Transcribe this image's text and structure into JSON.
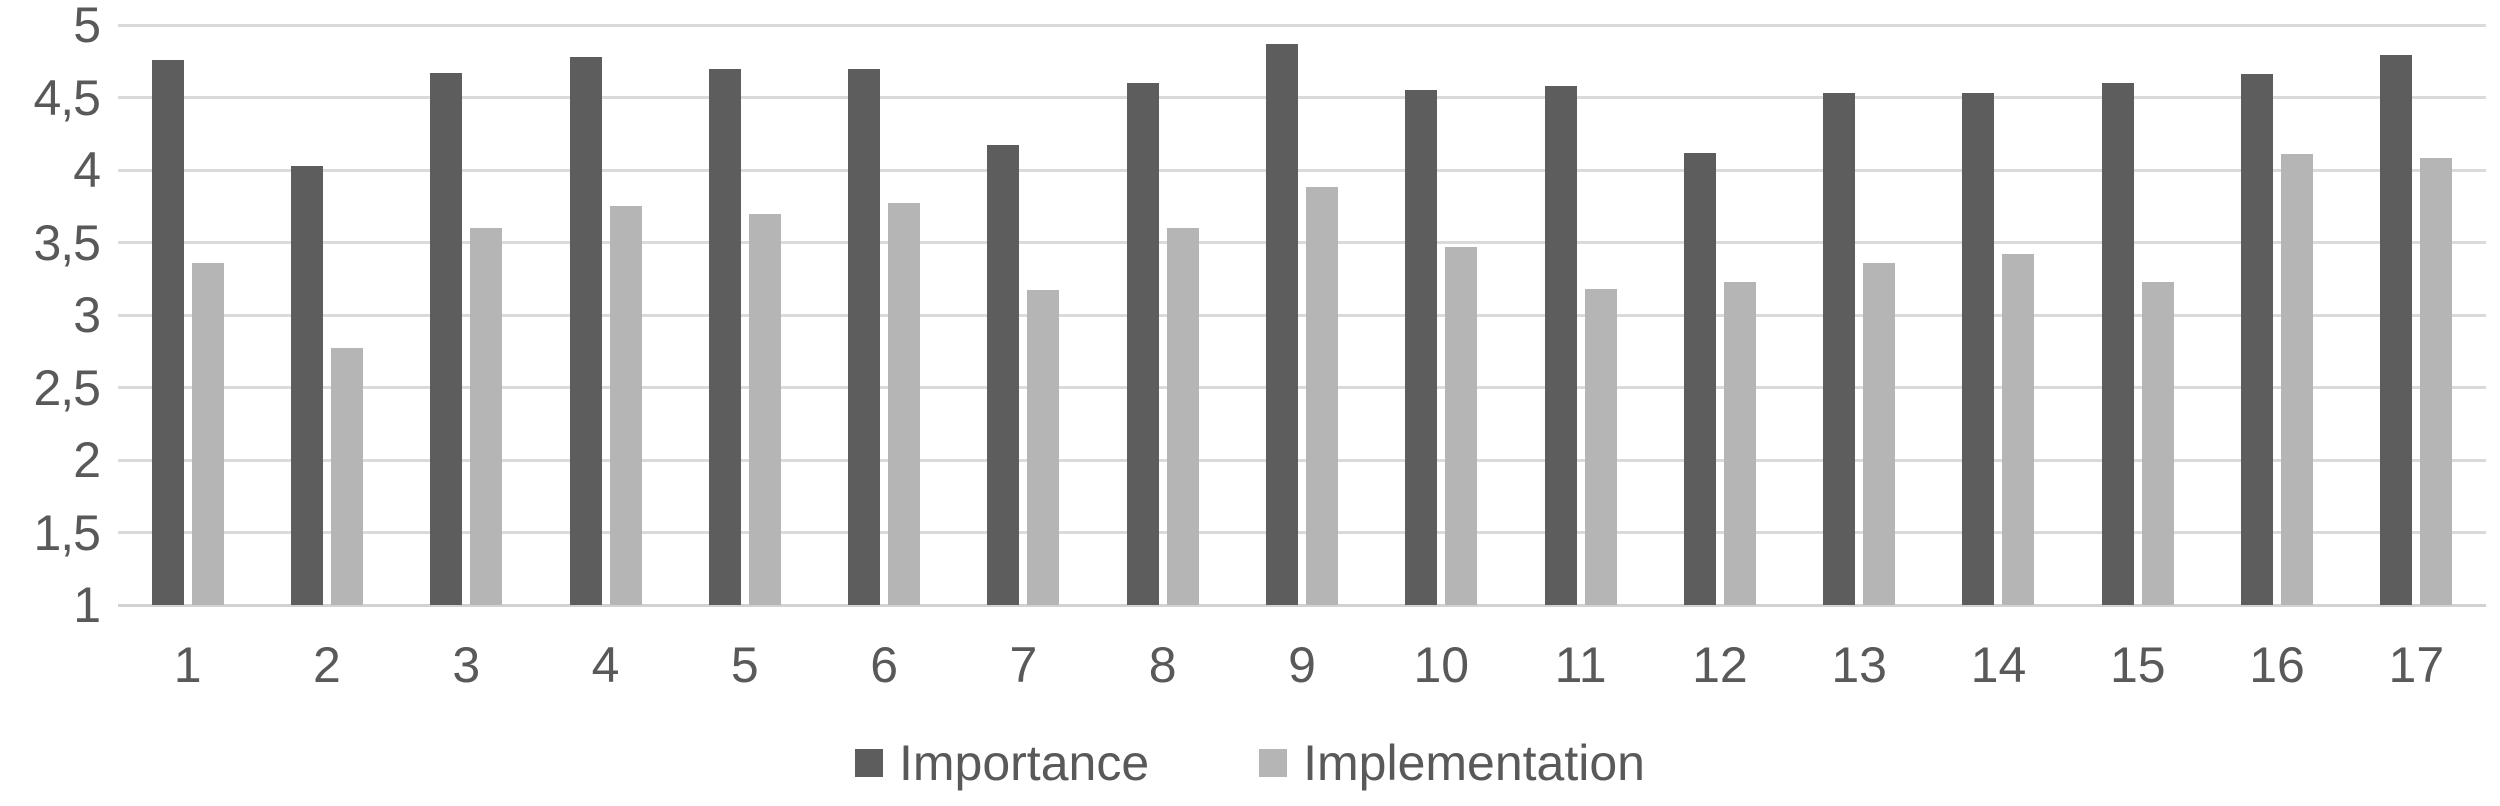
{
  "chart_data": {
    "type": "bar",
    "title": "",
    "xlabel": "",
    "ylabel": "",
    "categories": [
      "1",
      "2",
      "3",
      "4",
      "5",
      "6",
      "7",
      "8",
      "9",
      "10",
      "11",
      "12",
      "13",
      "14",
      "15",
      "16",
      "17"
    ],
    "series": [
      {
        "name": "Importance",
        "color": "#5d5d5d",
        "values": [
          4.76,
          4.03,
          4.67,
          4.78,
          4.7,
          4.7,
          4.17,
          4.6,
          4.87,
          4.55,
          4.58,
          4.12,
          4.53,
          4.53,
          4.6,
          4.66,
          4.79
        ]
      },
      {
        "name": "Implementation",
        "color": "#b5b5b5",
        "values": [
          3.36,
          2.77,
          3.6,
          3.75,
          3.7,
          3.77,
          3.17,
          3.6,
          3.88,
          3.47,
          3.18,
          3.23,
          3.36,
          3.42,
          3.23,
          4.11,
          4.08
        ]
      }
    ],
    "y_axis": {
      "min": 1,
      "max": 5,
      "tick_step": 0.5,
      "tick_labels": [
        "1",
        "1,5",
        "2",
        "2,5",
        "3",
        "3,5",
        "4",
        "4,5",
        "5"
      ],
      "decimal_separator": ","
    },
    "grid": true,
    "gridline_color": "#dadada",
    "axis_line_color": "#d2d2d2",
    "text_color": "#595959",
    "background": "#ffffff",
    "legend_position": "bottom"
  }
}
